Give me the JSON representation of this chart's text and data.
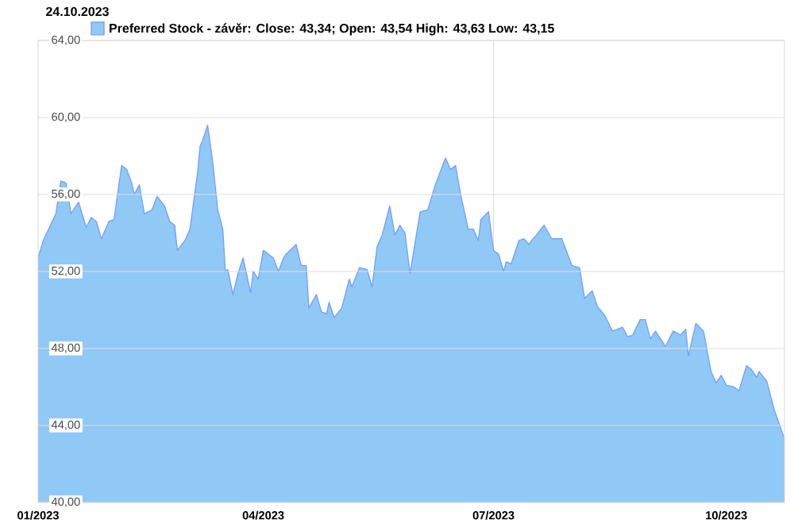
{
  "chart_data": {
    "type": "area",
    "title": "24.10.2023",
    "legend": "top left",
    "grid": "y",
    "xlim": [
      "2023-01-02",
      "2023-10-24"
    ],
    "xticks": [
      {
        "value": "2023-01-02",
        "label": "01/2023"
      },
      {
        "value": "2023-04-01",
        "label": "04/2023"
      },
      {
        "value": "2023-07-01",
        "label": "07/2023"
      },
      {
        "value": "2023-10-01",
        "label": "10/2023"
      }
    ],
    "ylim": [
      40,
      64
    ],
    "yticks": [
      {
        "value": 40,
        "label": "40,00"
      },
      {
        "value": 44,
        "label": "44,00"
      },
      {
        "value": 48,
        "label": "48,00"
      },
      {
        "value": 52,
        "label": "52,00"
      },
      {
        "value": 56,
        "label": "56,00"
      },
      {
        "value": 60,
        "label": "60,00"
      },
      {
        "value": 64,
        "label": "64,00"
      }
    ],
    "ref_lines": [
      {
        "axis": "x",
        "value": "2023-07-01",
        "color": "#dddddd"
      }
    ],
    "x": [
      "2023-01-02",
      "2023-01-04",
      "2023-01-09",
      "2023-01-11",
      "2023-01-13",
      "2023-01-15",
      "2023-01-18",
      "2023-01-21",
      "2023-01-23",
      "2023-01-25",
      "2023-01-27",
      "2023-01-30",
      "2023-02-01",
      "2023-02-04",
      "2023-02-06",
      "2023-02-08",
      "2023-02-09",
      "2023-02-11",
      "2023-02-13",
      "2023-02-16",
      "2023-02-18",
      "2023-02-21",
      "2023-02-23",
      "2023-02-25",
      "2023-02-26",
      "2023-03-01",
      "2023-03-03",
      "2023-03-06",
      "2023-03-07",
      "2023-03-08",
      "2023-03-10",
      "2023-03-12",
      "2023-03-14",
      "2023-03-16",
      "2023-03-17",
      "2023-03-18",
      "2023-03-20",
      "2023-03-22",
      "2023-03-24",
      "2023-03-27",
      "2023-03-28",
      "2023-03-30",
      "2023-04-01",
      "2023-04-05",
      "2023-04-07",
      "2023-04-09",
      "2023-04-10",
      "2023-04-14",
      "2023-04-16",
      "2023-04-18",
      "2023-04-19",
      "2023-04-22",
      "2023-04-24",
      "2023-04-26",
      "2023-04-27",
      "2023-04-29",
      "2023-05-02",
      "2023-05-05",
      "2023-05-06",
      "2023-05-09",
      "2023-05-12",
      "2023-05-14",
      "2023-05-16",
      "2023-05-18",
      "2023-05-21",
      "2023-05-23",
      "2023-05-25",
      "2023-05-27",
      "2023-05-29",
      "2023-06-02",
      "2023-06-05",
      "2023-06-08",
      "2023-06-12",
      "2023-06-14",
      "2023-06-16",
      "2023-06-18",
      "2023-06-21",
      "2023-06-23",
      "2023-06-25",
      "2023-06-26",
      "2023-06-29",
      "2023-07-01",
      "2023-07-03",
      "2023-07-05",
      "2023-07-06",
      "2023-07-08",
      "2023-07-11",
      "2023-07-13",
      "2023-07-15",
      "2023-07-16",
      "2023-07-18",
      "2023-07-21",
      "2023-07-24",
      "2023-07-28",
      "2023-08-01",
      "2023-08-04",
      "2023-08-06",
      "2023-08-09",
      "2023-08-11",
      "2023-08-14",
      "2023-08-17",
      "2023-08-21",
      "2023-08-23",
      "2023-08-25",
      "2023-08-28",
      "2023-08-30",
      "2023-09-01",
      "2023-09-03",
      "2023-09-07",
      "2023-09-10",
      "2023-09-13",
      "2023-09-15",
      "2023-09-16",
      "2023-09-19",
      "2023-09-22",
      "2023-09-25",
      "2023-09-27",
      "2023-09-29",
      "2023-10-01",
      "2023-10-04",
      "2023-10-06",
      "2023-10-09",
      "2023-10-11",
      "2023-10-13",
      "2023-10-14",
      "2023-10-17",
      "2023-10-20",
      "2023-10-24"
    ],
    "series": [
      {
        "name": "Preferred Stock - závěr: Close: 43,34; Open: 43,54 High: 43,63 Low: 43,15",
        "color": "#90c8f6",
        "values": [
          52.7,
          53.6,
          55.0,
          56.7,
          56.6,
          55.0,
          55.6,
          54.3,
          54.8,
          54.6,
          53.7,
          54.6,
          54.7,
          57.5,
          57.3,
          56.6,
          56.0,
          56.5,
          55.0,
          55.2,
          55.9,
          55.4,
          54.6,
          54.4,
          53.1,
          53.6,
          54.2,
          57.1,
          58.5,
          58.8,
          59.6,
          57.7,
          55.2,
          54.2,
          52.0,
          52.1,
          50.8,
          51.9,
          52.7,
          50.9,
          52.0,
          51.6,
          53.1,
          52.7,
          52.0,
          52.7,
          52.9,
          53.4,
          52.3,
          52.3,
          50.1,
          50.8,
          49.9,
          49.8,
          50.4,
          49.6,
          50.1,
          51.6,
          51.2,
          52.2,
          52.1,
          51.2,
          53.3,
          53.9,
          55.4,
          53.9,
          54.4,
          54.0,
          51.9,
          55.1,
          55.2,
          56.5,
          57.9,
          57.3,
          57.5,
          56.0,
          54.2,
          54.2,
          53.6,
          54.7,
          55.1,
          53.1,
          52.9,
          52.0,
          52.5,
          52.4,
          53.6,
          53.7,
          53.4,
          53.6,
          53.9,
          54.4,
          53.7,
          53.7,
          52.3,
          52.2,
          50.6,
          51.0,
          50.2,
          49.7,
          48.9,
          49.1,
          48.6,
          48.7,
          49.5,
          49.5,
          48.5,
          48.9,
          48.1,
          48.9,
          48.7,
          49.0,
          47.6,
          49.3,
          48.9,
          46.8,
          46.2,
          46.6,
          46.1,
          46.0,
          45.8,
          47.1,
          46.9,
          46.5,
          46.8,
          46.3,
          44.8,
          43.3
        ]
      }
    ]
  }
}
